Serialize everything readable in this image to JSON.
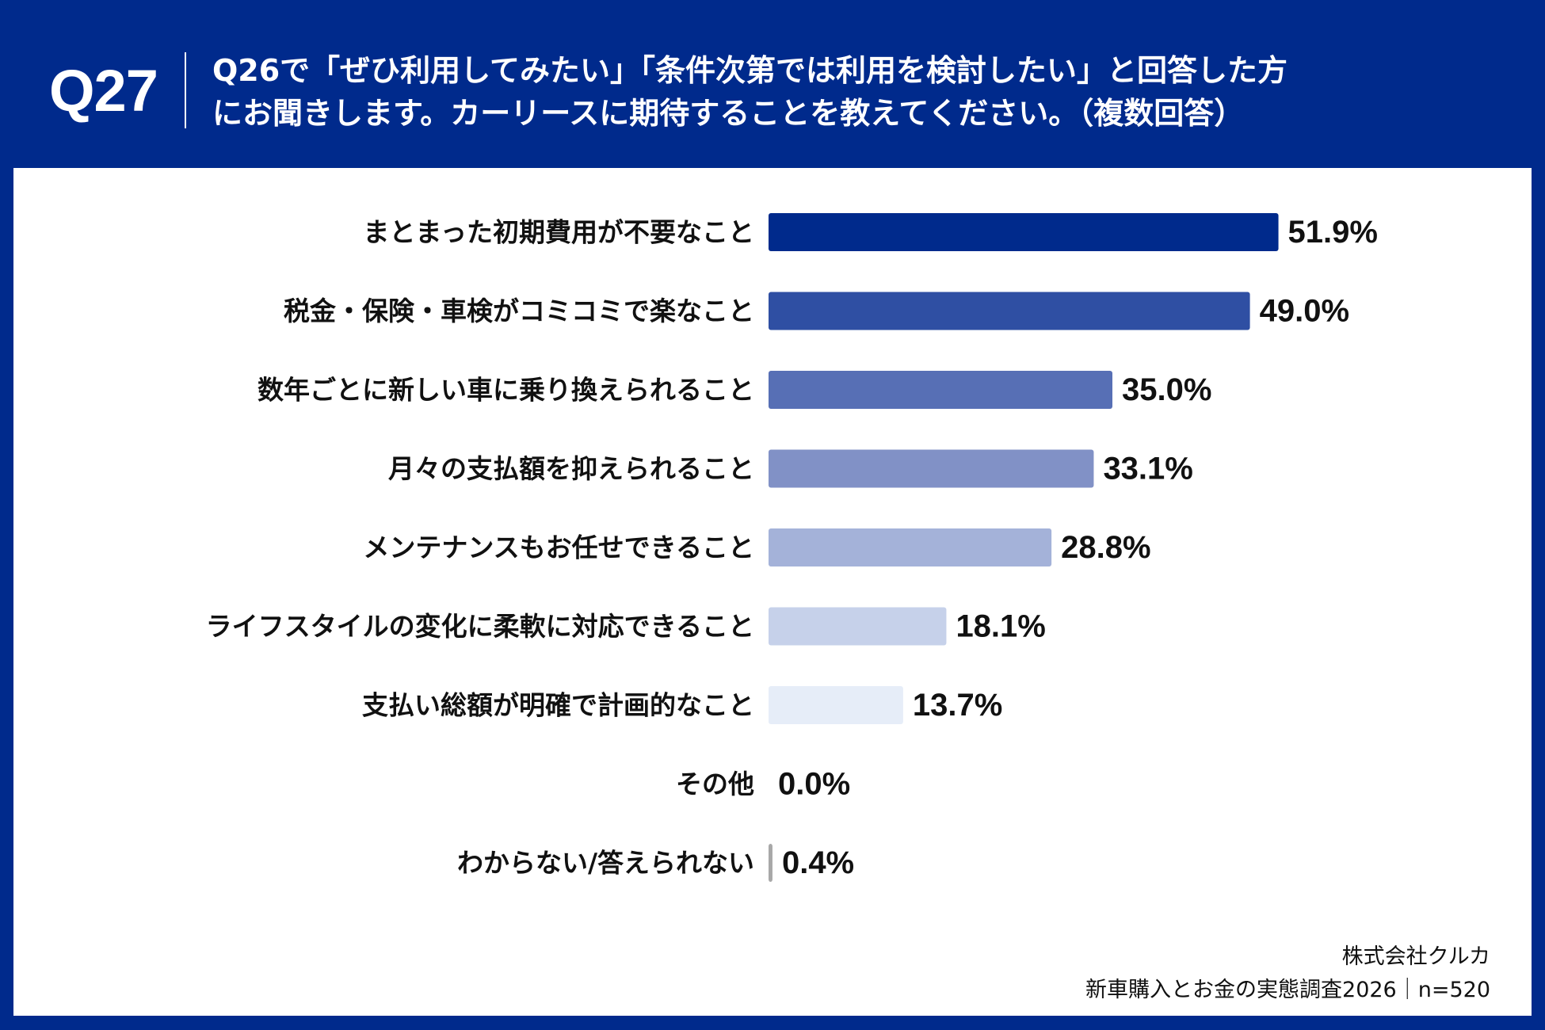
{
  "header": {
    "question_number": "Q27",
    "question_line1": "Q26で「ぜひ利用してみたい」「条件次第では利用を検討したい」と回答した方",
    "question_line2": "にお聞きします。カーリースに期待することを教えてください。（複数回答）"
  },
  "chart_data": {
    "type": "bar",
    "orientation": "horizontal",
    "categories": [
      "まとまった初期費用が不要なこと",
      "税金・保険・車検がコミコミで楽なこと",
      "数年ごとに新しい車に乗り換えられること",
      "月々の支払額を抑えられること",
      "メンテナンスもお任せできること",
      "ライフスタイルの変化に柔軟に対応できること",
      "支払い総額が明確で計画的なこと",
      "その他",
      "わからない/答えられない"
    ],
    "values": [
      51.9,
      49.0,
      35.0,
      33.1,
      28.8,
      18.1,
      13.7,
      0.0,
      0.4
    ],
    "value_labels": [
      "51.9%",
      "49.0%",
      "35.0%",
      "33.1%",
      "28.8%",
      "18.1%",
      "13.7%",
      "0.0%",
      "0.4%"
    ],
    "bar_colors": [
      "#002a8c",
      "#2f4fa3",
      "#576fb5",
      "#8191c6",
      "#a4b2d9",
      "#c6d1ea",
      "#e6edf8",
      "#cccccc",
      "#a8a8a8"
    ],
    "xlim": [
      0,
      100
    ],
    "grid": false,
    "legend": "none"
  },
  "footer": {
    "company": "株式会社クルカ",
    "survey": "新車購入とお金の実態調査2026｜n=520"
  }
}
